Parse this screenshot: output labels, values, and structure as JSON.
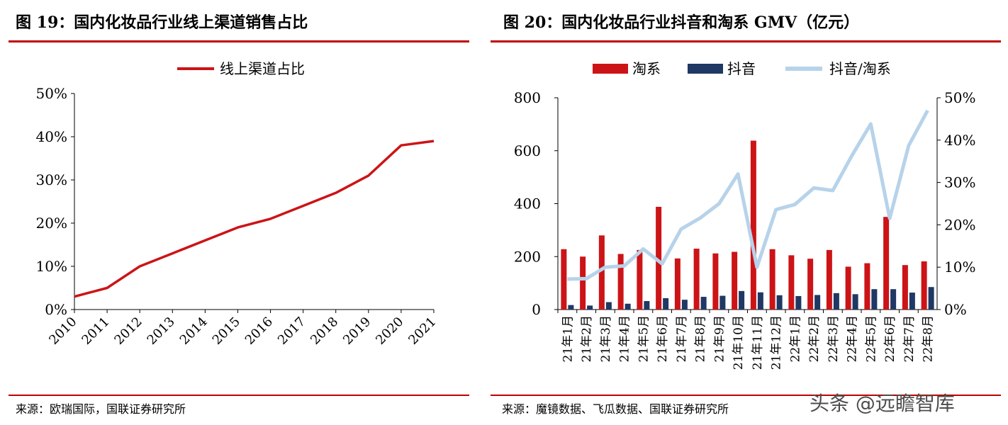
{
  "left_panel": {
    "title": "图 19：国内化妆品行业线上渠道销售占比",
    "source": "来源：欧瑞国际，国联证券研究所"
  },
  "right_panel": {
    "title": "图 20：国内化妆品行业抖音和淘系 GMV（亿元）",
    "source": "来源：魔镜数据、飞瓜数据、国联证券研究所"
  },
  "watermark": "头条 @远瞻智库",
  "colors": {
    "red": "#cc1417",
    "navy": "#1f3864",
    "lightblue": "#b7d3ea",
    "rule": "#c00000"
  },
  "chart_data": [
    {
      "type": "line",
      "title": "",
      "x": [
        "2010",
        "2011",
        "2012",
        "2013",
        "2014",
        "2015",
        "2016",
        "2017",
        "2018",
        "2019",
        "2020",
        "2021"
      ],
      "series": [
        {
          "name": "线上渠道占比",
          "values": [
            3,
            5,
            10,
            13,
            16,
            19,
            21,
            24,
            27,
            31,
            38,
            39
          ]
        }
      ],
      "yticks": [
        "0%",
        "10%",
        "20%",
        "30%",
        "40%",
        "50%"
      ],
      "ylim": [
        0,
        50
      ],
      "legend_position": "top-center",
      "grid": false
    },
    {
      "type": "bar",
      "title": "",
      "categories": [
        "21年1月",
        "21年2月",
        "21年3月",
        "21年4月",
        "21年5月",
        "21年6月",
        "21年7月",
        "21年8月",
        "21年9月",
        "21年10月",
        "21年11月",
        "21年12月",
        "22年1月",
        "22年2月",
        "22年3月",
        "22年4月",
        "22年5月",
        "22年6月",
        "22年7月",
        "22年8月"
      ],
      "series": [
        {
          "name": "淘系",
          "type": "bar",
          "axis": "left",
          "values": [
            228,
            200,
            280,
            210,
            225,
            388,
            193,
            230,
            212,
            218,
            638,
            228,
            205,
            192,
            225,
            162,
            175,
            350,
            168,
            182
          ]
        },
        {
          "name": "抖音",
          "type": "bar",
          "axis": "left",
          "values": [
            17,
            15,
            28,
            22,
            32,
            43,
            37,
            48,
            52,
            70,
            65,
            54,
            51,
            55,
            62,
            58,
            77,
            77,
            64,
            85
          ]
        },
        {
          "name": "抖音/淘系",
          "type": "line",
          "axis": "right",
          "values": [
            7.2,
            7.3,
            10,
            10.3,
            14.3,
            10.8,
            19,
            21.6,
            25,
            32,
            10,
            23.6,
            24.8,
            28.7,
            28.1,
            36.3,
            43.8,
            21.5,
            38.7,
            47
          ]
        }
      ],
      "yticks_left": [
        "0",
        "200",
        "400",
        "600",
        "800"
      ],
      "ylim_left": [
        0,
        800
      ],
      "yticks_right": [
        "0%",
        "10%",
        "20%",
        "30%",
        "40%",
        "50%"
      ],
      "ylim_right": [
        0,
        50
      ],
      "legend_position": "top-center",
      "grid": false
    }
  ]
}
